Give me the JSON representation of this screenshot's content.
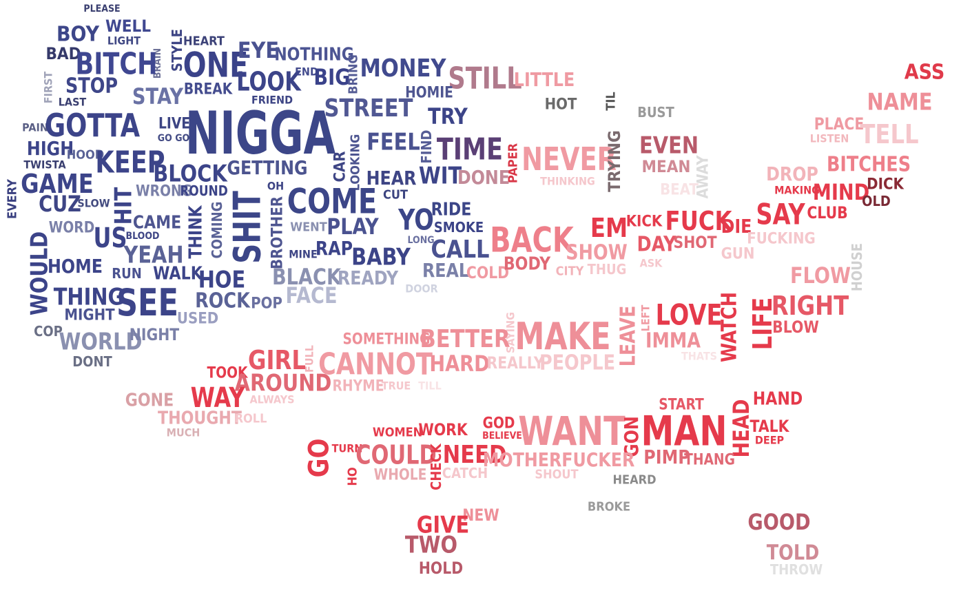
{
  "words": [
    {
      "text": "PLEASE",
      "color": "#3a3f70"
    },
    {
      "text": "BOY",
      "color": "#3d4689"
    },
    {
      "text": "WELL",
      "color": "#3f4790"
    },
    {
      "text": "LIGHT",
      "color": "#404884"
    },
    {
      "text": "HEART",
      "color": "#3c4278"
    },
    {
      "text": "STYLE",
      "color": "#3e4585"
    },
    {
      "text": "BRAIN",
      "color": "#6e7298"
    },
    {
      "text": "BAD",
      "color": "#35396a"
    },
    {
      "text": "BITCH",
      "color": "#3f4791"
    },
    {
      "text": "ONE",
      "color": "#3a4289"
    },
    {
      "text": "EYE",
      "color": "#4a5290"
    },
    {
      "text": "NOTHING",
      "color": "#4d5593"
    },
    {
      "text": "END",
      "color": "#444c8e"
    },
    {
      "text": "BIG",
      "color": "#3a428a"
    },
    {
      "text": "BRING",
      "color": "#555c95"
    },
    {
      "text": "MONEY",
      "color": "#414a8e"
    },
    {
      "text": "STILL",
      "color": "#b07a8c"
    },
    {
      "text": "LITTLE",
      "color": "#ef9aa2"
    },
    {
      "text": "ASS",
      "color": "#e03a4a"
    },
    {
      "text": "FIRST",
      "color": "#a0a3b8"
    },
    {
      "text": "STOP",
      "color": "#3e4689"
    },
    {
      "text": "LAST",
      "color": "#3a3f70"
    },
    {
      "text": "STAY",
      "color": "#6a72a5"
    },
    {
      "text": "BREAK",
      "color": "#444c8e"
    },
    {
      "text": "LOOK",
      "color": "#3c4489"
    },
    {
      "text": "FRIEND",
      "color": "#3e4585"
    },
    {
      "text": "HOMIE",
      "color": "#4e5590"
    },
    {
      "text": "STREET",
      "color": "#515893"
    },
    {
      "text": "HOT",
      "color": "#6a6a6a"
    },
    {
      "text": "TIL",
      "color": "#555555"
    },
    {
      "text": "BUST",
      "color": "#9a9a9a"
    },
    {
      "text": "NAME",
      "color": "#ee8f98"
    },
    {
      "text": "PAIN",
      "color": "#5a5f85"
    },
    {
      "text": "GOTTA",
      "color": "#3c4489"
    },
    {
      "text": "LIVE",
      "color": "#3c4483"
    },
    {
      "text": "GO GO",
      "color": "#444c85"
    },
    {
      "text": "NIGGA",
      "color": "#3c4688"
    },
    {
      "text": "TRY",
      "color": "#3c4488"
    },
    {
      "text": "PLACE",
      "color": "#ef9aa2"
    },
    {
      "text": "LISTEN",
      "color": "#f2b8bd"
    },
    {
      "text": "TELL",
      "color": "#f5c7cc"
    },
    {
      "text": "HIGH",
      "color": "#3c4489"
    },
    {
      "text": "HOOD",
      "color": "#5a6296"
    },
    {
      "text": "TWISTA",
      "color": "#3a3f70"
    },
    {
      "text": "KEEP",
      "color": "#3c4489"
    },
    {
      "text": "BLOCK",
      "color": "#3c4489"
    },
    {
      "text": "GETTING",
      "color": "#4c548f"
    },
    {
      "text": "CAR",
      "color": "#3e4585"
    },
    {
      "text": "LOOKING",
      "color": "#4d5590"
    },
    {
      "text": "FEEL",
      "color": "#4a5290"
    },
    {
      "text": "FIND",
      "color": "#555c95"
    },
    {
      "text": "TIME",
      "color": "#5a3f75"
    },
    {
      "text": "PAPER",
      "color": "#d93848"
    },
    {
      "text": "NEVER",
      "color": "#f09aa2"
    },
    {
      "text": "TRYING",
      "color": "#7a6a6e"
    },
    {
      "text": "EVEN",
      "color": "#b85a6a"
    },
    {
      "text": "MEAN",
      "color": "#d08a95"
    },
    {
      "text": "AWAY",
      "color": "#dcdcdc"
    },
    {
      "text": "DROP",
      "color": "#f2b3b9"
    },
    {
      "text": "BITCHES",
      "color": "#ee7f8a"
    },
    {
      "text": "EVERY",
      "color": "#3a4080"
    },
    {
      "text": "GAME",
      "color": "#3c4489"
    },
    {
      "text": "CUZ",
      "color": "#3e4585"
    },
    {
      "text": "SLOW",
      "color": "#444c80"
    },
    {
      "text": "HIT",
      "color": "#3c4489"
    },
    {
      "text": "WRONG",
      "color": "#7a80a8"
    },
    {
      "text": "ROUND",
      "color": "#3c4488"
    },
    {
      "text": "OH",
      "color": "#3e4585"
    },
    {
      "text": "HEAR",
      "color": "#3e4585"
    },
    {
      "text": "CUT",
      "color": "#3c4480"
    },
    {
      "text": "WIT",
      "color": "#3c4488"
    },
    {
      "text": "DONE",
      "color": "#c38a98"
    },
    {
      "text": "THINKING",
      "color": "#f5c7cc"
    },
    {
      "text": "BEAT",
      "color": "#f8e3e5"
    },
    {
      "text": "MAKING",
      "color": "#e53a4b"
    },
    {
      "text": "MIND",
      "color": "#e53a4b"
    },
    {
      "text": "DICK",
      "color": "#8a2a35"
    },
    {
      "text": "OLD",
      "color": "#7a2a35"
    },
    {
      "text": "WORD",
      "color": "#7a80a8"
    },
    {
      "text": "US",
      "color": "#3c4489"
    },
    {
      "text": "CAME",
      "color": "#4e5590"
    },
    {
      "text": "BLOOD",
      "color": "#3e4585"
    },
    {
      "text": "THINK",
      "color": "#3c4489"
    },
    {
      "text": "COMING",
      "color": "#5a6296"
    },
    {
      "text": "SHIT",
      "color": "#3c4688"
    },
    {
      "text": "BROTHER",
      "color": "#4e5590"
    },
    {
      "text": "COME",
      "color": "#3c4688"
    },
    {
      "text": "WENT",
      "color": "#8a90b0"
    },
    {
      "text": "PLAY",
      "color": "#4a5290"
    },
    {
      "text": "YO",
      "color": "#3c4688"
    },
    {
      "text": "RIDE",
      "color": "#3c4688"
    },
    {
      "text": "SMOKE",
      "color": "#3c4488"
    },
    {
      "text": "LONG",
      "color": "#6a70a0"
    },
    {
      "text": "BACK",
      "color": "#ee7f8a"
    },
    {
      "text": "SHOW",
      "color": "#f09aa2"
    },
    {
      "text": "EM",
      "color": "#e53a4b"
    },
    {
      "text": "KICK",
      "color": "#e53a4b"
    },
    {
      "text": "FUCK",
      "color": "#e53a4b"
    },
    {
      "text": "DIE",
      "color": "#e53a4b"
    },
    {
      "text": "DAY",
      "color": "#e65866"
    },
    {
      "text": "SHOT",
      "color": "#e06874"
    },
    {
      "text": "SAY",
      "color": "#e53a4b"
    },
    {
      "text": "CLUB",
      "color": "#e53a4b"
    },
    {
      "text": "FUCKING",
      "color": "#f5c7cc"
    },
    {
      "text": "WOULD",
      "color": "#3c4489"
    },
    {
      "text": "HOME",
      "color": "#3c4489"
    },
    {
      "text": "YEAH",
      "color": "#5a6296"
    },
    {
      "text": "RUN",
      "color": "#4a5290"
    },
    {
      "text": "WALK",
      "color": "#3c4489"
    },
    {
      "text": "HOE",
      "color": "#3c4489"
    },
    {
      "text": "MINE",
      "color": "#3e4585"
    },
    {
      "text": "RAP",
      "color": "#3c4489"
    },
    {
      "text": "BABY",
      "color": "#3c4488"
    },
    {
      "text": "CALL",
      "color": "#4a5290"
    },
    {
      "text": "REAL",
      "color": "#7a80a8"
    },
    {
      "text": "COLD",
      "color": "#f09aa2"
    },
    {
      "text": "BODY",
      "color": "#e06874"
    },
    {
      "text": "CITY",
      "color": "#f2b3b9"
    },
    {
      "text": "THUG",
      "color": "#f5c7cc"
    },
    {
      "text": "ASK",
      "color": "#f5c7cc"
    },
    {
      "text": "GUN",
      "color": "#f5c7cc"
    },
    {
      "text": "HOUSE",
      "color": "#d0d0d0"
    },
    {
      "text": "BLACK",
      "color": "#8a90b0"
    },
    {
      "text": "READY",
      "color": "#9fa4c0"
    },
    {
      "text": "ROCK",
      "color": "#5a6296"
    },
    {
      "text": "POP",
      "color": "#6a70a0"
    },
    {
      "text": "FACE",
      "color": "#b5b9d0"
    },
    {
      "text": "DOOR",
      "color": "#d0d3e0"
    },
    {
      "text": "FLOW",
      "color": "#f09aa2"
    },
    {
      "text": "THING",
      "color": "#3c4489"
    },
    {
      "text": "MIGHT",
      "color": "#4a5290"
    },
    {
      "text": "SEE",
      "color": "#3c4489"
    },
    {
      "text": "USED",
      "color": "#9a9ec0"
    },
    {
      "text": "LOVE",
      "color": "#e53a4b"
    },
    {
      "text": "WATCH",
      "color": "#e53a4b"
    },
    {
      "text": "LIFE",
      "color": "#e53a4b"
    },
    {
      "text": "RIGHT",
      "color": "#e65866"
    },
    {
      "text": "BLOW",
      "color": "#e65866"
    },
    {
      "text": "SAYING",
      "color": "#f5c7cc"
    },
    {
      "text": "MAKE",
      "color": "#ee8f98"
    },
    {
      "text": "LEAVE",
      "color": "#ee8f98"
    },
    {
      "text": "LEFT",
      "color": "#f09aa2"
    },
    {
      "text": "IMMA",
      "color": "#ee8f98"
    },
    {
      "text": "COP",
      "color": "#6a6f85"
    },
    {
      "text": "WORLD",
      "color": "#8a90b0"
    },
    {
      "text": "NIGHT",
      "color": "#7a80a8"
    },
    {
      "text": "DONT",
      "color": "#6a6f85"
    },
    {
      "text": "SOMETHING",
      "color": "#ee8f98"
    },
    {
      "text": "BETTER",
      "color": "#ee8f98"
    },
    {
      "text": "FULL",
      "color": "#f2b3b9"
    },
    {
      "text": "GIRL",
      "color": "#e65866"
    },
    {
      "text": "CANNOT",
      "color": "#f09aa2"
    },
    {
      "text": "HARD",
      "color": "#ee8f98"
    },
    {
      "text": "REALLY",
      "color": "#f5c7cc"
    },
    {
      "text": "PEOPLE",
      "color": "#f5c7cc"
    },
    {
      "text": "THATS",
      "color": "#f8e3e5"
    },
    {
      "text": "TOOK",
      "color": "#e53a4b"
    },
    {
      "text": "AROUND",
      "color": "#e06874"
    },
    {
      "text": "RHYME",
      "color": "#f2b3b9"
    },
    {
      "text": "TRUE",
      "color": "#f5c7cc"
    },
    {
      "text": "TILL",
      "color": "#f8e3e5"
    },
    {
      "text": "GONE",
      "color": "#d9a0a5"
    },
    {
      "text": "WAY",
      "color": "#e53a4b"
    },
    {
      "text": "ALWAYS",
      "color": "#f5c7cc"
    },
    {
      "text": "THOUGHT",
      "color": "#e9a9af"
    },
    {
      "text": "ROLL",
      "color": "#f5c7cc"
    },
    {
      "text": "MUCH",
      "color": "#d9b0b4"
    },
    {
      "text": "START",
      "color": "#e65866"
    },
    {
      "text": "HAND",
      "color": "#e53a4b"
    },
    {
      "text": "WOMEN",
      "color": "#e53a4b"
    },
    {
      "text": "WORK",
      "color": "#e53a4b"
    },
    {
      "text": "GOD",
      "color": "#e53a4b"
    },
    {
      "text": "BELIEVE",
      "color": "#e53a4b"
    },
    {
      "text": "WANT",
      "color": "#ee8f98"
    },
    {
      "text": "GON",
      "color": "#e53a4b"
    },
    {
      "text": "MAN",
      "color": "#e53a4b"
    },
    {
      "text": "HEAD",
      "color": "#e53a4b"
    },
    {
      "text": "TALK",
      "color": "#e53a4b"
    },
    {
      "text": "DEEP",
      "color": "#e53a4b"
    },
    {
      "text": "GO",
      "color": "#e53a4b"
    },
    {
      "text": "TURN",
      "color": "#e53a4b"
    },
    {
      "text": "COULD",
      "color": "#e06874"
    },
    {
      "text": "CHECK",
      "color": "#e53a4b"
    },
    {
      "text": "NEED",
      "color": "#e53a4b"
    },
    {
      "text": "MOTHERFUCKER",
      "color": "#f09aa2"
    },
    {
      "text": "PIMP",
      "color": "#e06874"
    },
    {
      "text": "THANG",
      "color": "#e06874"
    },
    {
      "text": "HO",
      "color": "#e53a4b"
    },
    {
      "text": "WHOLE",
      "color": "#e9a9af"
    },
    {
      "text": "CATCH",
      "color": "#f5c7cc"
    },
    {
      "text": "SHOUT",
      "color": "#f5c7cc"
    },
    {
      "text": "HEARD",
      "color": "#8a8a8a"
    },
    {
      "text": "BROKE",
      "color": "#9a9a9a"
    },
    {
      "text": "NEW",
      "color": "#ee8f98"
    },
    {
      "text": "GIVE",
      "color": "#e53a4b"
    },
    {
      "text": "TWO",
      "color": "#b85a6a"
    },
    {
      "text": "HOLD",
      "color": "#b85a6a"
    },
    {
      "text": "GOOD",
      "color": "#b85a6a"
    },
    {
      "text": "TOLD",
      "color": "#d08a95"
    },
    {
      "text": "THROW",
      "color": "#e0e0e0"
    }
  ]
}
